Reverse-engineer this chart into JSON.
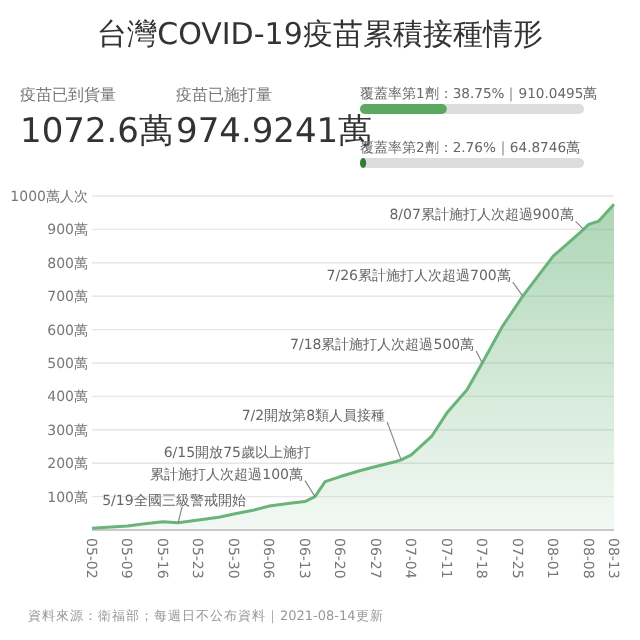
{
  "chart_data": [
    {
      "type": "other",
      "title": "台灣COVID-19疫苗累積接種情形",
      "annotations": [
        "疫苗已到貨量",
        "1072.6萬",
        "疫苗已施打量",
        "974.9241萬"
      ]
    },
    {
      "type": "bar",
      "orientation": "horizontal",
      "categories": [
        null,
        null
      ],
      "values": [
        38.75,
        2.76
      ],
      "colors": [
        "#5aa862",
        "#2e7d32"
      ],
      "value_labels": [
        "覆蓋率第1劑：38.75%｜910.0495萬",
        "覆蓋率第2劑：2.76%｜64.8746萬"
      ],
      "xlim": [
        0,
        100
      ]
    },
    {
      "type": "area",
      "x": [
        "2021-05-02",
        "2021-05-05",
        "2021-05-09",
        "2021-05-12",
        "2021-05-16",
        "2021-05-19",
        "2021-05-23",
        "2021-05-27",
        "2021-05-30",
        "2021-06-03",
        "2021-06-06",
        "2021-06-10",
        "2021-06-13",
        "2021-06-15",
        "2021-06-17",
        "2021-06-20",
        "2021-06-24",
        "2021-06-27",
        "2021-07-01",
        "2021-07-02",
        "2021-07-04",
        "2021-07-08",
        "2021-07-11",
        "2021-07-15",
        "2021-07-18",
        "2021-07-22",
        "2021-07-26",
        "2021-07-29",
        "2021-08-01",
        "2021-08-04",
        "2021-08-07",
        "2021-08-08",
        "2021-08-10",
        "2021-08-13"
      ],
      "series": [
        {
          "color": "#6ab47a",
          "values": [
            5,
            8,
            12,
            18,
            25,
            22,
            30,
            38,
            48,
            60,
            72,
            80,
            85,
            100,
            145,
            160,
            178,
            190,
            205,
            210,
            225,
            280,
            350,
            420,
            500,
            610,
            700,
            760,
            820,
            860,
            900,
            915,
            925,
            975
          ]
        }
      ],
      "xlim": [
        "2021-05-02",
        "2021-08-13"
      ],
      "ylim": [
        0,
        1000
      ],
      "xticks": [
        {
          "value": "2021-05-02",
          "label": "05-02"
        },
        {
          "value": "2021-05-09",
          "label": "05-09"
        },
        {
          "value": "2021-05-16",
          "label": "05-16"
        },
        {
          "value": "2021-05-23",
          "label": "05-23"
        },
        {
          "value": "2021-05-30",
          "label": "05-30"
        },
        {
          "value": "2021-06-06",
          "label": "06-06"
        },
        {
          "value": "2021-06-13",
          "label": "06-13"
        },
        {
          "value": "2021-06-20",
          "label": "06-20"
        },
        {
          "value": "2021-06-27",
          "label": "06-27"
        },
        {
          "value": "2021-07-04",
          "label": "07-04"
        },
        {
          "value": "2021-07-11",
          "label": "07-11"
        },
        {
          "value": "2021-07-18",
          "label": "07-18"
        },
        {
          "value": "2021-07-25",
          "label": "07-25"
        },
        {
          "value": "2021-08-01",
          "label": "08-01"
        },
        {
          "value": "2021-08-08",
          "label": "08-08"
        },
        {
          "value": "2021-08-13",
          "label": "08-13"
        }
      ],
      "yticks": [
        {
          "value": 0,
          "label": null
        },
        {
          "value": 100,
          "label": "100萬"
        },
        {
          "value": 200,
          "label": "200萬"
        },
        {
          "value": 300,
          "label": "300萬"
        },
        {
          "value": 400,
          "label": "400萬"
        },
        {
          "value": 500,
          "label": "500萬"
        },
        {
          "value": 600,
          "label": "600萬"
        },
        {
          "value": 700,
          "label": "700萬"
        },
        {
          "value": 800,
          "label": "800萬"
        },
        {
          "value": 900,
          "label": "900萬"
        },
        {
          "value": 1000,
          "label": "1000萬人次"
        }
      ],
      "grid": "y",
      "marker": "none",
      "annotations": [
        {
          "text": "5/19全國三級警戒開始",
          "x": "2021-05-19",
          "y": 22
        },
        {
          "text": "6/15開放75歲以上施打",
          "x": "2021-06-15",
          "y": 100
        },
        {
          "text": "累計施打人次超過100萬",
          "x": "2021-06-15",
          "y": 100
        },
        {
          "text": "7/2開放第8類人員接種",
          "x": "2021-07-02",
          "y": 210
        },
        {
          "text": "7/18累計施打人次超過500萬",
          "x": "2021-07-18",
          "y": 500
        },
        {
          "text": "7/26累計施打人次超過700萬",
          "x": "2021-07-26",
          "y": 700
        },
        {
          "text": "8/07累計施打人次超過900萬",
          "x": "2021-08-07",
          "y": 900
        },
        "資料來源：衛福部；每週日不公布資料｜2021-08-14更新"
      ]
    }
  ]
}
